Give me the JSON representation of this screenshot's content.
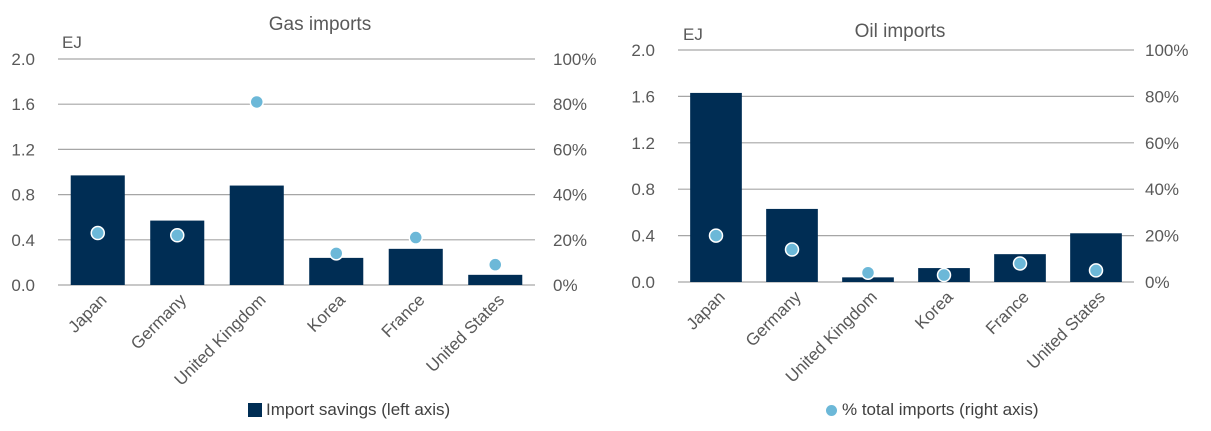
{
  "colors": {
    "bar": "#002D54",
    "dot": "#6CB8D8",
    "grid": "#a6a6a6",
    "text": "#595959"
  },
  "legend": {
    "bars": "Import savings (left axis)",
    "dots": "% total imports (right axis)"
  },
  "chart_data": [
    {
      "type": "bar",
      "title": "Gas imports",
      "ylabel": "EJ",
      "categories": [
        "Japan",
        "Germany",
        "United Kingdom",
        "Korea",
        "France",
        "United States"
      ],
      "ylim": [
        0,
        2.0
      ],
      "yticks": [
        "0.0",
        "0.4",
        "0.8",
        "1.2",
        "1.6",
        "2.0"
      ],
      "y2lim": [
        0,
        100
      ],
      "y2ticks": [
        "0%",
        "20%",
        "40%",
        "60%",
        "80%",
        "100%"
      ],
      "series": [
        {
          "name": "Import savings (left axis)",
          "axis": "left",
          "kind": "bar",
          "values": [
            0.97,
            0.57,
            0.88,
            0.24,
            0.32,
            0.09
          ]
        },
        {
          "name": "% total imports (right axis)",
          "axis": "right",
          "kind": "scatter",
          "values": [
            23,
            22,
            81,
            14,
            21,
            9
          ]
        }
      ]
    },
    {
      "type": "bar",
      "title": "Oil imports",
      "ylabel": "EJ",
      "categories": [
        "Japan",
        "Germany",
        "United Kingdom",
        "Korea",
        "France",
        "United States"
      ],
      "ylim": [
        0,
        2.0
      ],
      "yticks": [
        "0.0",
        "0.4",
        "0.8",
        "1.2",
        "1.6",
        "2.0"
      ],
      "y2lim": [
        0,
        100
      ],
      "y2ticks": [
        "0%",
        "20%",
        "40%",
        "60%",
        "80%",
        "100%"
      ],
      "series": [
        {
          "name": "Import savings (left axis)",
          "axis": "left",
          "kind": "bar",
          "values": [
            1.63,
            0.63,
            0.04,
            0.12,
            0.24,
            0.42
          ]
        },
        {
          "name": "% total imports (right axis)",
          "axis": "right",
          "kind": "scatter",
          "values": [
            20,
            14,
            4,
            3,
            8,
            5
          ]
        }
      ]
    }
  ]
}
